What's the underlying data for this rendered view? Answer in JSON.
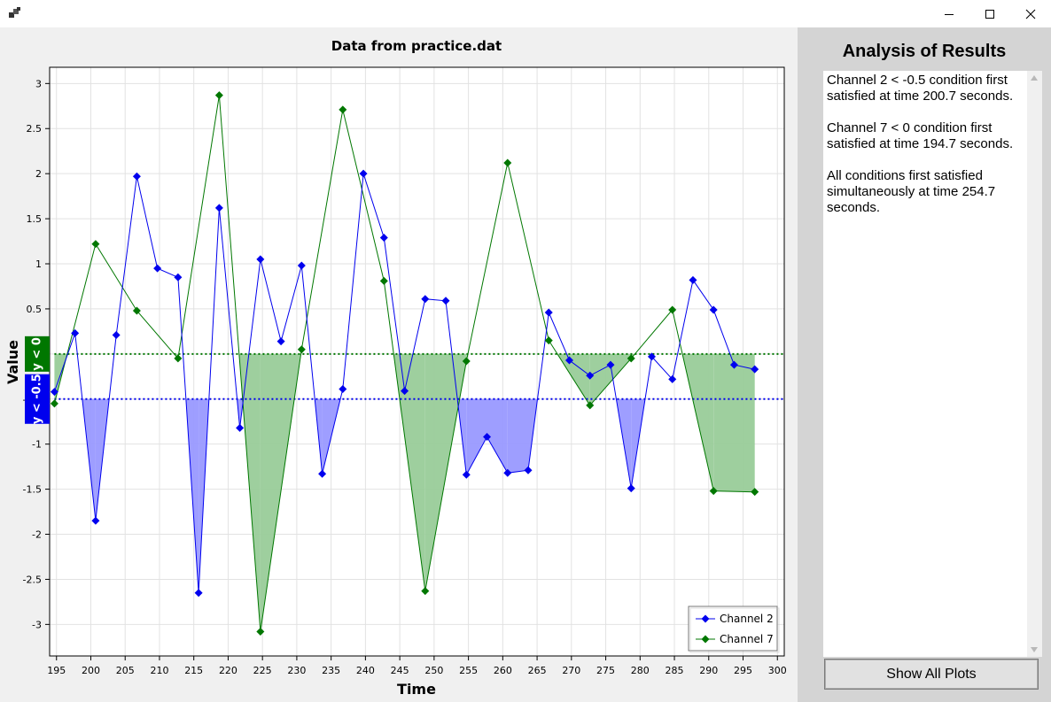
{
  "window": {
    "title": "",
    "icons": [
      "app-icon",
      "minimize-icon",
      "maximize-icon",
      "close-icon"
    ]
  },
  "chart_data": {
    "type": "line",
    "title": "Data from practice.dat",
    "xlabel": "Time",
    "ylabel": "Value",
    "xlim": [
      194,
      301
    ],
    "ylim": [
      -3.35,
      3.18
    ],
    "xticks": [
      "195",
      "200",
      "205",
      "210",
      "215",
      "220",
      "225",
      "230",
      "235",
      "240",
      "245",
      "250",
      "255",
      "260",
      "265",
      "270",
      "275",
      "280",
      "285",
      "290",
      "295",
      "300"
    ],
    "yticks": [
      "3",
      "2.5",
      "2",
      "1.5",
      "1",
      "0.5",
      "0",
      "-0.5",
      "-1",
      "-1.5",
      "-2",
      "-2.5",
      "-3"
    ],
    "grid": true,
    "legend_position": "bottom-right",
    "series": [
      {
        "name": "Channel 2",
        "color": "#0000ee",
        "fill": "#9999ff",
        "threshold": -0.5,
        "threshold_label": "y < -0.5",
        "x": [
          194.7,
          197.7,
          200.7,
          203.7,
          206.7,
          209.7,
          212.7,
          215.7,
          218.7,
          221.7,
          224.7,
          227.7,
          230.7,
          233.7,
          236.7,
          239.7,
          242.7,
          245.7,
          248.7,
          251.7,
          254.7,
          257.7,
          260.7,
          263.7,
          266.7,
          269.7,
          272.7,
          275.7,
          278.7,
          281.7,
          284.7,
          287.7,
          290.7,
          293.7,
          296.7
        ],
        "y": [
          -0.42,
          0.23,
          -1.85,
          0.21,
          1.97,
          0.95,
          0.85,
          -2.65,
          1.62,
          -0.82,
          1.05,
          0.14,
          0.98,
          -1.33,
          -0.39,
          2.0,
          1.29,
          -0.41,
          0.61,
          0.59,
          -1.34,
          -0.92,
          -1.32,
          -1.29,
          0.46,
          -0.07,
          -0.24,
          -0.12,
          -1.49,
          -0.03,
          -0.28,
          0.82,
          0.49,
          -0.12,
          -0.17
        ]
      },
      {
        "name": "Channel 7",
        "color": "#007700",
        "fill": "#99cc99",
        "threshold": 0,
        "threshold_label": "y < 0",
        "x": [
          194.7,
          200.7,
          206.7,
          212.7,
          218.7,
          224.7,
          230.7,
          236.7,
          242.7,
          248.7,
          254.7,
          260.7,
          266.7,
          272.7,
          278.7,
          284.7,
          290.7,
          296.7
        ],
        "y": [
          -0.55,
          1.22,
          0.48,
          -0.05,
          2.87,
          -3.08,
          0.05,
          2.71,
          0.81,
          -2.63,
          -0.08,
          2.12,
          0.15,
          -0.57,
          -0.05,
          0.49,
          -1.52,
          -1.53
        ]
      }
    ]
  },
  "analysis": {
    "title": "Analysis of Results",
    "results": [
      "Channel 2 < -0.5 condition first satisfied at time 200.7 seconds.",
      "Channel 7 < 0 condition first satisfied at time 194.7 seconds.",
      "All conditions first satisfied simultaneously at time 254.7 seconds."
    ],
    "button_label": "Show All Plots"
  }
}
